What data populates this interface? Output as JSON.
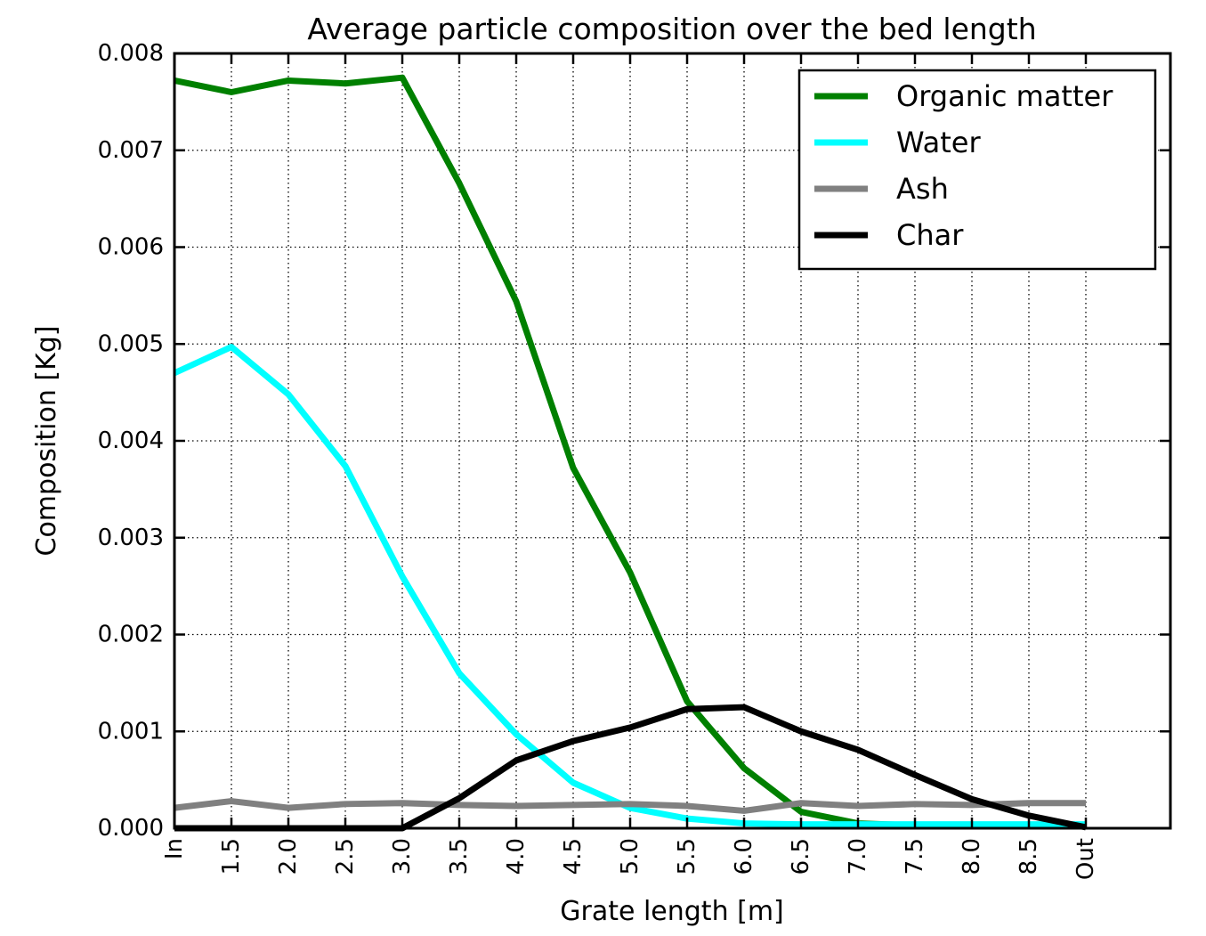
{
  "figure": {
    "background": "#ffffff",
    "plot_border_color": "#000000",
    "grid_style": "dotted"
  },
  "chart_data": {
    "type": "line",
    "title": "Average particle composition over the bed length",
    "xlabel": "Grate length [m]",
    "ylabel": "Composition [Kg]",
    "categories": [
      "In",
      "1.5",
      "2.0",
      "2.5",
      "3.0",
      "3.5",
      "4.0",
      "4.5",
      "5.0",
      "5.5",
      "6.0",
      "6.5",
      "7.0",
      "7.5",
      "8.0",
      "8.5",
      "Out"
    ],
    "xtick_rotation_deg": 90,
    "ylim": [
      0,
      0.008
    ],
    "ytick_interval": 0.001,
    "ytick_labels": [
      "0.000",
      "0.001",
      "0.002",
      "0.003",
      "0.004",
      "0.005",
      "0.006",
      "0.007",
      "0.008"
    ],
    "grid": true,
    "legend": {
      "position": "upper right",
      "entries": [
        "Organic matter",
        "Water",
        "Ash",
        "Char"
      ]
    },
    "series": [
      {
        "name": "Organic matter",
        "color": "#008000",
        "values": [
          0.00772,
          0.0076,
          0.00772,
          0.00769,
          0.00775,
          0.00666,
          0.00544,
          0.00372,
          0.00264,
          0.00131,
          0.00062,
          0.00017,
          5e-05,
          3e-05,
          2e-05,
          2e-05,
          2e-05
        ]
      },
      {
        "name": "Water",
        "color": "#00ffff",
        "values": [
          0.0047,
          0.00497,
          0.00448,
          0.00374,
          0.0026,
          0.0016,
          0.00097,
          0.00047,
          0.00021,
          0.0001,
          5e-05,
          4e-05,
          4e-05,
          4e-05,
          4e-05,
          4e-05,
          4e-05
        ]
      },
      {
        "name": "Ash",
        "color": "#808080",
        "values": [
          0.00021,
          0.00028,
          0.00021,
          0.00025,
          0.00026,
          0.00024,
          0.00023,
          0.00024,
          0.00025,
          0.00023,
          0.00018,
          0.00026,
          0.00023,
          0.00025,
          0.00024,
          0.00026,
          0.00026
        ]
      },
      {
        "name": "Char",
        "color": "#000000",
        "values": [
          0.0,
          0.0,
          0.0,
          0.0,
          0.0,
          0.00031,
          0.0007,
          0.0009,
          0.00104,
          0.00123,
          0.00125,
          0.001,
          0.00081,
          0.00055,
          0.0003,
          0.00013,
          1e-05
        ]
      }
    ]
  }
}
